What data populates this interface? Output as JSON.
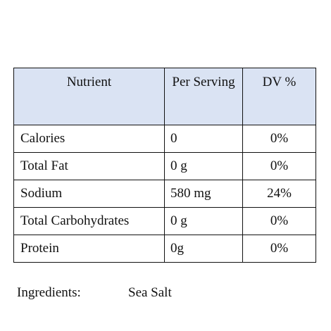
{
  "table": {
    "headers": {
      "nutrient": "Nutrient",
      "per_serving": "Per Serving",
      "dv": "DV %"
    },
    "rows": [
      {
        "nutrient": "Calories",
        "amount": "0",
        "dv": "0%"
      },
      {
        "nutrient": "Total Fat",
        "amount": "0 g",
        "dv": "0%"
      },
      {
        "nutrient": "Sodium",
        "amount": "580 mg",
        "dv": "24%"
      },
      {
        "nutrient": "Total Carbohydrates",
        "amount": "0 g",
        "dv": "0%"
      },
      {
        "nutrient": "Protein",
        "amount": "0g",
        "dv": "0%"
      }
    ],
    "header_background": "#dae3f3",
    "border_color": "#111111"
  },
  "ingredients": {
    "label": "Ingredients:",
    "value": "Sea Salt"
  }
}
